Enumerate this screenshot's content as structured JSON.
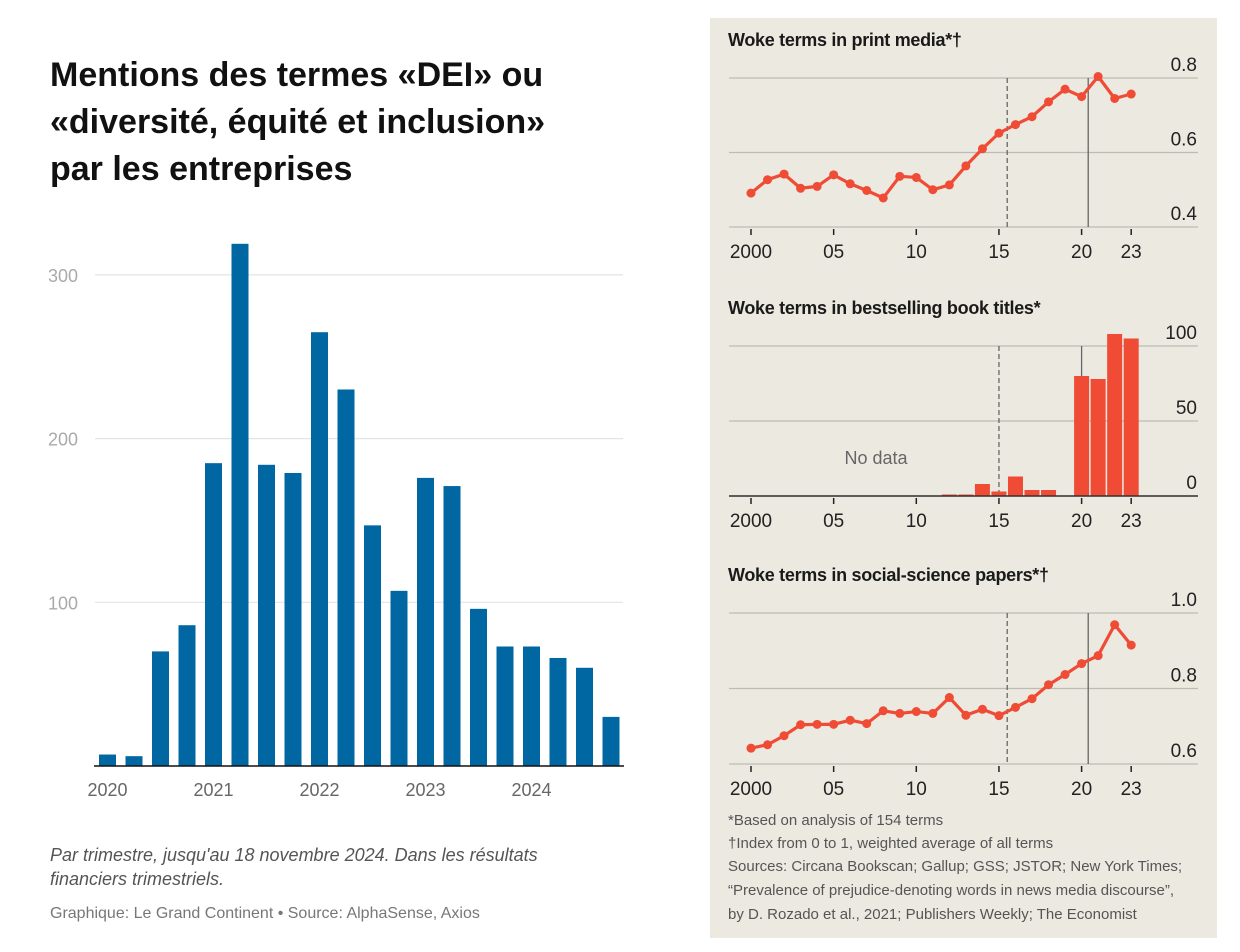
{
  "left": {
    "title_lines": [
      "Mentions des termes «DEI» ou",
      "«diversité, équité et inclusion»",
      "par les entreprises"
    ],
    "caption_lines": [
      "Par trimestre, jusqu'au 18 novembre 2024. Dans les résultats",
      "financiers trimestriels."
    ],
    "source": "Graphique: Le Grand Continent • Source: AlphaSense, Axios"
  },
  "right": {
    "footnotes": [
      "*Based on analysis of 154 terms",
      "†Index from 0 to 1, weighted average of all terms",
      "Sources: Circana Bookscan; Gallup; GSS; JSTOR; New York Times;",
      "“Prevalence of prejudice-denoting words in news media discourse”,",
      "by D. Rozado et al., 2021; Publishers Weekly; The Economist"
    ]
  },
  "colors": {
    "blue": "#0067a2",
    "red": "#ef4b35",
    "panel": "#ebe9e0"
  },
  "chart_data": [
    {
      "type": "bar",
      "title": "Mentions des termes «DEI» ou «diversité, équité et inclusion» par les entreprises",
      "categories": [
        "2020Q1",
        "2020Q2",
        "2020Q3",
        "2020Q4",
        "2021Q1",
        "2021Q2",
        "2021Q3",
        "2021Q4",
        "2022Q1",
        "2022Q2",
        "2022Q3",
        "2022Q4",
        "2023Q1",
        "2023Q2",
        "2023Q3",
        "2023Q4",
        "2024Q1",
        "2024Q2",
        "2024Q3",
        "2024Q4"
      ],
      "values": [
        7,
        6,
        70,
        86,
        185,
        319,
        184,
        179,
        265,
        230,
        147,
        107,
        176,
        171,
        96,
        73,
        73,
        66,
        60,
        30
      ],
      "xticks": [
        "2020",
        "2021",
        "2022",
        "2023",
        "2024"
      ],
      "yticks": [
        "100",
        "200",
        "300"
      ],
      "ylim": [
        0,
        330
      ],
      "xlabel": "",
      "ylabel": ""
    },
    {
      "type": "line",
      "title": "Woke terms in print media*†",
      "x": [
        2000,
        2001,
        2002,
        2003,
        2004,
        2005,
        2006,
        2007,
        2008,
        2009,
        2010,
        2011,
        2012,
        2013,
        2014,
        2015,
        2016,
        2017,
        2018,
        2019,
        2020,
        2021,
        2022,
        2023
      ],
      "values": [
        0.491,
        0.527,
        0.542,
        0.504,
        0.509,
        0.54,
        0.516,
        0.498,
        0.478,
        0.536,
        0.533,
        0.5,
        0.513,
        0.564,
        0.61,
        0.652,
        0.675,
        0.696,
        0.736,
        0.77,
        0.75,
        0.804,
        0.745,
        0.757
      ],
      "xticks": [
        "2000",
        "05",
        "10",
        "15",
        "20",
        "23"
      ],
      "yticks": [
        "0.4",
        "0.6",
        "0.8"
      ],
      "ylim": [
        0.4,
        0.8
      ],
      "markers": {
        "dashed": 2015.5,
        "solid": 2020.4
      }
    },
    {
      "type": "bar",
      "title": "Woke terms in bestselling book titles*",
      "x": [
        2012,
        2013,
        2014,
        2015,
        2016,
        2017,
        2018,
        2019,
        2020,
        2021,
        2022,
        2023
      ],
      "values": [
        1,
        1,
        8,
        3,
        13,
        4,
        4,
        0,
        80,
        78,
        108,
        105
      ],
      "annotation": "No data",
      "xticks": [
        "2000",
        "05",
        "10",
        "15",
        "20",
        "23"
      ],
      "yticks": [
        "0",
        "50",
        "100"
      ],
      "ylim": [
        0,
        100
      ],
      "markers": {
        "dashed": 2015,
        "solid": 2020
      }
    },
    {
      "type": "line",
      "title": "Woke terms in social-science papers*†",
      "x": [
        2000,
        2001,
        2002,
        2003,
        2004,
        2005,
        2006,
        2007,
        2008,
        2009,
        2010,
        2011,
        2012,
        2013,
        2014,
        2015,
        2016,
        2017,
        2018,
        2019,
        2020,
        2021,
        2022,
        2023
      ],
      "values": [
        0.642,
        0.651,
        0.675,
        0.704,
        0.705,
        0.705,
        0.716,
        0.707,
        0.741,
        0.734,
        0.739,
        0.734,
        0.776,
        0.729,
        0.745,
        0.728,
        0.75,
        0.773,
        0.81,
        0.837,
        0.866,
        0.887,
        0.969,
        0.915
      ],
      "xticks": [
        "2000",
        "05",
        "10",
        "15",
        "20",
        "23"
      ],
      "yticks": [
        "0.6",
        "0.8",
        "1.0"
      ],
      "ylim": [
        0.6,
        1.0
      ],
      "markers": {
        "dashed": 2015.5,
        "solid": 2020.4
      }
    }
  ]
}
